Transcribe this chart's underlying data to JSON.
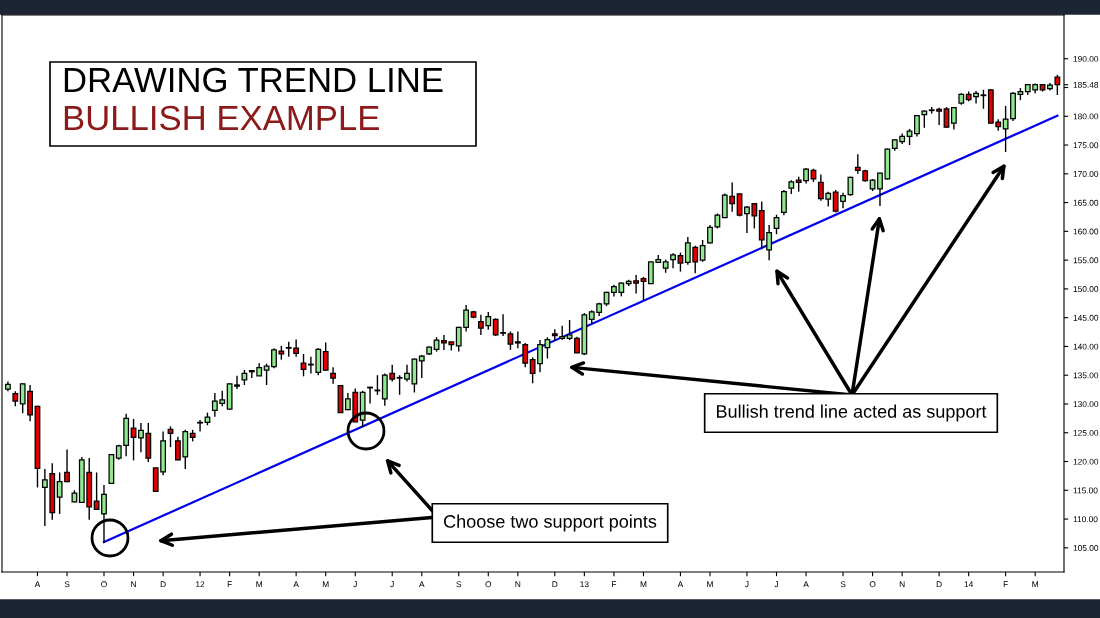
{
  "chart_data": {
    "type": "candlestick",
    "title": "DRAWING TREND LINE",
    "subtitle": "BULLISH EXAMPLE",
    "annotations": [
      "Choose two support points",
      "Bullish trend line acted as support"
    ],
    "categories": [
      null,
      null,
      null,
      null,
      "A",
      null,
      null,
      null,
      "S",
      null,
      null,
      null,
      null,
      "O",
      null,
      null,
      null,
      "N",
      null,
      null,
      null,
      "D",
      null,
      null,
      null,
      null,
      "12",
      null,
      null,
      null,
      "F",
      null,
      null,
      null,
      "M",
      null,
      null,
      null,
      null,
      "A",
      null,
      null,
      null,
      "M",
      null,
      null,
      null,
      "J",
      null,
      null,
      null,
      null,
      "J",
      null,
      null,
      null,
      "A",
      null,
      null,
      null,
      null,
      "S",
      null,
      null,
      null,
      "O",
      null,
      null,
      null,
      "N",
      null,
      null,
      null,
      null,
      "D",
      null,
      null,
      null,
      "13",
      null,
      null,
      null,
      "F",
      null,
      null,
      null,
      "M",
      null,
      null,
      null,
      null,
      "A",
      null,
      null,
      null,
      "M",
      null,
      null,
      null,
      null,
      "J",
      null,
      null,
      null,
      "J",
      null,
      null,
      null,
      "A",
      null,
      null,
      null,
      null,
      "S",
      null,
      null,
      null,
      "O",
      null,
      null,
      null,
      "N",
      null,
      null,
      null,
      null,
      "D",
      null,
      null,
      null,
      "14",
      null,
      null,
      null,
      null,
      "F",
      null,
      null,
      null,
      "M",
      null,
      null,
      null
    ],
    "ohlc": [
      [
        132.6,
        133.9,
        132.2,
        133.4
      ],
      [
        131.8,
        132.2,
        129.6,
        130.5
      ],
      [
        130.0,
        133.6,
        128.4,
        133.5
      ],
      [
        132.2,
        133.3,
        127.0,
        128.1
      ],
      [
        129.6,
        129.7,
        115.5,
        118.8
      ],
      [
        115.5,
        118.7,
        108.8,
        116.8
      ],
      [
        117.9,
        119.7,
        109.9,
        111.1
      ],
      [
        113.8,
        118.1,
        110.9,
        116.5
      ],
      [
        118.1,
        122.1,
        116.4,
        116.5
      ],
      [
        113.0,
        115.0,
        112.9,
        114.5
      ],
      [
        112.9,
        120.8,
        112.8,
        120.3
      ],
      [
        118.1,
        120.6,
        109.9,
        112.1
      ],
      [
        113.1,
        118.1,
        111.6,
        111.7
      ],
      [
        110.9,
        115.9,
        105.9,
        114.3
      ],
      [
        116.2,
        121.3,
        116.1,
        121.2
      ],
      [
        120.6,
        122.9,
        120.3,
        122.7
      ],
      [
        122.8,
        128.3,
        120.9,
        127.5
      ],
      [
        125.8,
        127.4,
        120.2,
        124.2
      ],
      [
        124.1,
        126.7,
        121.6,
        125.4
      ],
      [
        124.9,
        126.7,
        119.9,
        120.6
      ],
      [
        118.9,
        118.9,
        114.8,
        114.8
      ],
      [
        118.2,
        125.2,
        117.6,
        123.6
      ],
      [
        125.6,
        126.1,
        122.5,
        124.9
      ],
      [
        123.6,
        124.3,
        120.2,
        120.3
      ],
      [
        120.8,
        125.5,
        118.7,
        125.2
      ],
      [
        124.9,
        125.5,
        123.5,
        124.2
      ],
      [
        126.7,
        127.2,
        125.2,
        126.8
      ],
      [
        126.8,
        128.5,
        126.3,
        127.7
      ],
      [
        128.9,
        131.9,
        127.8,
        130.5
      ],
      [
        130.1,
        132.3,
        129.6,
        130.7
      ],
      [
        129.1,
        133.6,
        129.0,
        133.5
      ],
      [
        133.1,
        134.9,
        132.6,
        133.3
      ],
      [
        134.2,
        135.9,
        133.3,
        135.3
      ],
      [
        135.6,
        135.9,
        134.5,
        135.8
      ],
      [
        134.9,
        137.1,
        134.9,
        136.3
      ],
      [
        135.9,
        137.0,
        133.3,
        136.6
      ],
      [
        136.5,
        139.7,
        136.2,
        139.4
      ],
      [
        139.2,
        140.1,
        137.7,
        138.7
      ],
      [
        139.7,
        140.8,
        138.2,
        139.8
      ],
      [
        139.7,
        141.2,
        138.2,
        138.8
      ],
      [
        137.1,
        138.7,
        134.8,
        136.0
      ],
      [
        136.8,
        138.2,
        135.3,
        136.9
      ],
      [
        135.5,
        139.7,
        135.0,
        139.5
      ],
      [
        139.1,
        140.7,
        135.8,
        135.9
      ],
      [
        135.3,
        136.4,
        133.5,
        134.5
      ],
      [
        133.2,
        133.3,
        128.5,
        128.5
      ],
      [
        129.0,
        131.9,
        128.9,
        130.9
      ],
      [
        132.0,
        132.7,
        126.9,
        126.9
      ],
      [
        127.2,
        132.3,
        126.0,
        132.0
      ],
      [
        132.8,
        133.0,
        130.1,
        132.9
      ],
      [
        132.3,
        135.0,
        131.6,
        132.4
      ],
      [
        130.9,
        135.3,
        129.7,
        135.0
      ],
      [
        135.3,
        136.8,
        133.9,
        134.3
      ],
      [
        134.5,
        135.0,
        131.6,
        134.6
      ],
      [
        134.3,
        136.8,
        133.9,
        135.3
      ],
      [
        133.5,
        137.9,
        132.0,
        137.8
      ],
      [
        137.5,
        138.5,
        134.5,
        138.3
      ],
      [
        138.7,
        140.0,
        138.5,
        139.9
      ],
      [
        139.5,
        141.6,
        139.1,
        141.1
      ],
      [
        141.0,
        142.0,
        139.4,
        140.6
      ],
      [
        140.8,
        140.8,
        139.3,
        140.3
      ],
      [
        140.1,
        143.4,
        139.1,
        143.3
      ],
      [
        143.3,
        147.2,
        142.6,
        146.3
      ],
      [
        146.0,
        146.2,
        144.9,
        145.1
      ],
      [
        144.3,
        145.5,
        142.0,
        143.2
      ],
      [
        143.6,
        146.0,
        142.9,
        145.2
      ],
      [
        144.7,
        144.9,
        141.8,
        142.0
      ],
      [
        142.3,
        145.6,
        141.8,
        142.4
      ],
      [
        142.2,
        142.6,
        139.4,
        140.4
      ],
      [
        140.8,
        142.6,
        139.7,
        140.6
      ],
      [
        140.3,
        140.6,
        136.4,
        137.1
      ],
      [
        137.7,
        138.1,
        133.6,
        135.3
      ],
      [
        137.0,
        141.1,
        135.5,
        140.3
      ],
      [
        139.8,
        141.6,
        137.9,
        141.2
      ],
      [
        142.2,
        143.0,
        141.0,
        141.9
      ],
      [
        141.4,
        143.6,
        141.1,
        141.7
      ],
      [
        141.4,
        144.6,
        141.1,
        142.0
      ],
      [
        141.4,
        141.7,
        138.9,
        138.9
      ],
      [
        138.7,
        145.8,
        138.5,
        145.5
      ],
      [
        144.7,
        146.3,
        144.0,
        146.0
      ],
      [
        145.9,
        147.6,
        145.3,
        147.4
      ],
      [
        147.4,
        149.5,
        147.0,
        149.4
      ],
      [
        149.4,
        150.7,
        148.7,
        150.4
      ],
      [
        149.4,
        151.1,
        148.7,
        151.0
      ],
      [
        150.9,
        151.6,
        150.5,
        151.3
      ],
      [
        151.4,
        152.4,
        149.2,
        151.0
      ],
      [
        151.8,
        152.1,
        148.0,
        151.3
      ],
      [
        150.9,
        154.7,
        150.9,
        154.7
      ],
      [
        154.6,
        155.9,
        154.5,
        155.1
      ],
      [
        153.6,
        155.1,
        152.8,
        154.7
      ],
      [
        155.1,
        156.2,
        153.6,
        155.9
      ],
      [
        155.8,
        156.3,
        153.0,
        154.5
      ],
      [
        154.6,
        159.0,
        154.2,
        158.0
      ],
      [
        157.2,
        157.5,
        152.7,
        154.7
      ],
      [
        155.0,
        158.5,
        154.7,
        157.5
      ],
      [
        158.0,
        161.1,
        157.9,
        160.7
      ],
      [
        160.8,
        163.1,
        160.5,
        162.8
      ],
      [
        162.4,
        166.6,
        162.3,
        166.3
      ],
      [
        166.1,
        168.5,
        163.4,
        164.8
      ],
      [
        166.5,
        166.6,
        162.6,
        162.8
      ],
      [
        163.1,
        164.4,
        159.7,
        164.2
      ],
      [
        164.8,
        164.9,
        160.5,
        162.7
      ],
      [
        163.6,
        165.2,
        156.9,
        158.5
      ],
      [
        156.8,
        161.1,
        155.0,
        159.8
      ],
      [
        160.5,
        162.9,
        159.5,
        162.4
      ],
      [
        163.3,
        167.2,
        162.8,
        166.9
      ],
      [
        167.5,
        168.9,
        166.5,
        168.6
      ],
      [
        168.9,
        169.5,
        166.9,
        168.5
      ],
      [
        168.8,
        171.0,
        168.3,
        170.8
      ],
      [
        170.6,
        170.9,
        168.6,
        169.1
      ],
      [
        168.5,
        169.9,
        165.3,
        165.7
      ],
      [
        165.6,
        166.9,
        164.3,
        166.6
      ],
      [
        166.8,
        167.2,
        163.3,
        163.5
      ],
      [
        165.2,
        166.7,
        164.0,
        166.2
      ],
      [
        166.4,
        169.5,
        166.2,
        169.4
      ],
      [
        171.1,
        173.4,
        170.0,
        170.6
      ],
      [
        170.5,
        170.7,
        168.6,
        168.8
      ],
      [
        167.4,
        169.1,
        167.0,
        168.9
      ],
      [
        167.4,
        170.2,
        164.4,
        170.1
      ],
      [
        169.1,
        174.4,
        169.0,
        174.3
      ],
      [
        174.4,
        176.0,
        174.0,
        175.9
      ],
      [
        175.6,
        177.0,
        175.2,
        176.5
      ],
      [
        176.5,
        177.8,
        175.0,
        177.4
      ],
      [
        177.0,
        180.2,
        176.5,
        180.1
      ],
      [
        180.3,
        181.0,
        178.0,
        180.9
      ],
      [
        181.0,
        181.6,
        180.5,
        181.1
      ],
      [
        181.2,
        181.5,
        178.5,
        180.9
      ],
      [
        181.3,
        181.6,
        178.0,
        178.1
      ],
      [
        178.8,
        181.6,
        177.7,
        181.5
      ],
      [
        182.3,
        184.0,
        182.0,
        183.8
      ],
      [
        183.8,
        184.3,
        182.6,
        182.9
      ],
      [
        183.4,
        184.4,
        182.2,
        184.0
      ],
      [
        183.6,
        184.6,
        181.3,
        183.7
      ],
      [
        184.6,
        184.7,
        178.8,
        178.8
      ],
      [
        179.0,
        179.5,
        177.5,
        178.2
      ],
      [
        177.8,
        181.8,
        173.8,
        179.5
      ],
      [
        179.6,
        184.2,
        179.2,
        184.0
      ],
      [
        183.8,
        184.9,
        182.8,
        184.3
      ],
      [
        184.3,
        185.6,
        183.7,
        185.5
      ],
      [
        184.6,
        185.7,
        184.0,
        185.5
      ],
      [
        185.5,
        185.6,
        184.3,
        184.6
      ],
      [
        184.8,
        185.8,
        184.5,
        185.4
      ],
      [
        186.8,
        187.2,
        183.7,
        185.48
      ]
    ],
    "colors": [
      "#90e890",
      "#e00000",
      "#90e890",
      "#e00000",
      "#e00000",
      "#90e890",
      "#e00000",
      "#90e890",
      "#e00000",
      "#90e890",
      "#90e890",
      "#e00000",
      "#e00000",
      "#90e890",
      "#90e890",
      "#90e890",
      "#90e890",
      "#e00000",
      "#90e890",
      "#e00000",
      "#e00000",
      "#90e890",
      "#e00000",
      "#e00000",
      "#90e890",
      "#e00000",
      "#90e890",
      "#90e890",
      "#90e890",
      "#90e890",
      "#90e890",
      "#90e890",
      "#90e890",
      "#90e890",
      "#90e890",
      "#90e890",
      "#90e890",
      "#e00000",
      "#90e890",
      "#e00000",
      "#e00000",
      "#90e890",
      "#90e890",
      "#e00000",
      "#e00000",
      "#e00000",
      "#90e890",
      "#e00000",
      "#90e890",
      "#90e890",
      "#90e890",
      "#90e890",
      "#e00000",
      "#90e890",
      "#90e890",
      "#90e890",
      "#90e890",
      "#90e890",
      "#90e890",
      "#e00000",
      "#e00000",
      "#90e890",
      "#90e890",
      "#e00000",
      "#e00000",
      "#90e890",
      "#e00000",
      "#90e890",
      "#e00000",
      "#e00000",
      "#e00000",
      "#e00000",
      "#90e890",
      "#90e890",
      "#e00000",
      "#90e890",
      "#90e890",
      "#e00000",
      "#90e890",
      "#90e890",
      "#90e890",
      "#90e890",
      "#90e890",
      "#90e890",
      "#90e890",
      "#e00000",
      "#e00000",
      "#90e890",
      "#90e890",
      "#90e890",
      "#90e890",
      "#e00000",
      "#90e890",
      "#e00000",
      "#90e890",
      "#90e890",
      "#90e890",
      "#90e890",
      "#e00000",
      "#e00000",
      "#90e890",
      "#e00000",
      "#e00000",
      "#90e890",
      "#90e890",
      "#90e890",
      "#90e890",
      "#e00000",
      "#90e890",
      "#e00000",
      "#e00000",
      "#90e890",
      "#e00000",
      "#90e890",
      "#90e890",
      "#e00000",
      "#e00000",
      "#90e890",
      "#90e890",
      "#90e890",
      "#90e890",
      "#90e890",
      "#90e890",
      "#90e890",
      "#90e890",
      "#90e890",
      "#e00000",
      "#e00000",
      "#90e890",
      "#90e890",
      "#e00000",
      "#90e890",
      "#90e890",
      "#e00000",
      "#e00000",
      "#90e890",
      "#90e890",
      "#90e890",
      "#90e890",
      "#90e890",
      "#e00000",
      "#90e890",
      "#e00000"
    ],
    "series": [
      {
        "type": "line",
        "color": "#0000ee",
        "values": [
          null,
          null,
          null,
          null,
          null,
          null,
          null,
          null,
          null,
          null,
          null,
          null,
          null,
          106.0,
          null,
          null,
          null,
          null,
          null,
          null,
          null,
          null,
          null,
          null,
          null,
          null,
          null,
          null,
          null,
          null,
          null,
          null,
          null,
          null,
          null,
          null,
          null,
          null,
          null,
          null,
          null,
          null,
          null,
          null,
          null,
          null,
          null,
          null,
          null,
          null,
          null,
          null,
          null,
          null,
          null,
          null,
          null,
          null,
          null,
          null,
          null,
          null,
          null,
          null,
          null,
          null,
          null,
          null,
          null,
          null,
          null,
          null,
          null,
          null,
          null,
          null,
          null,
          null,
          null,
          null,
          null,
          null,
          null,
          null,
          null,
          null,
          null,
          null,
          null,
          null,
          null,
          null,
          null,
          null,
          null,
          null,
          null,
          null,
          null,
          null,
          null,
          null,
          null,
          null,
          null,
          null,
          null,
          null,
          null,
          null,
          null,
          null,
          null,
          null,
          null,
          null,
          null,
          null,
          null,
          null,
          null,
          null,
          null,
          null,
          null,
          null,
          null,
          null,
          null,
          null,
          null,
          null,
          null,
          null,
          null,
          null,
          null,
          null,
          null,
          null,
          null,
          null,
          180.1
        ]
      }
    ],
    "ylim": [
      100.8,
      197.6
    ],
    "yticks": [
      {
        "value": 105,
        "label": "105.00"
      },
      {
        "value": 110,
        "label": "110.00"
      },
      {
        "value": 115,
        "label": "115.00"
      },
      {
        "value": 120,
        "label": "120.00"
      },
      {
        "value": 125,
        "label": "125.00"
      },
      {
        "value": 130,
        "label": "130.00"
      },
      {
        "value": 135,
        "label": "135.00"
      },
      {
        "value": 140,
        "label": "140.00"
      },
      {
        "value": 145,
        "label": "145.00"
      },
      {
        "value": 150,
        "label": "150.00"
      },
      {
        "value": 155,
        "label": "155.00"
      },
      {
        "value": 160,
        "label": "160.00"
      },
      {
        "value": 165,
        "label": "165.00"
      },
      {
        "value": 170,
        "label": "170.00"
      },
      {
        "value": 175,
        "label": "175.00"
      },
      {
        "value": 180,
        "label": "180.00"
      },
      {
        "value": 185,
        "label": null
      },
      {
        "value": 185.48,
        "label": "185.48"
      },
      {
        "value": 190,
        "label": "190.00"
      }
    ],
    "grid": false
  }
}
